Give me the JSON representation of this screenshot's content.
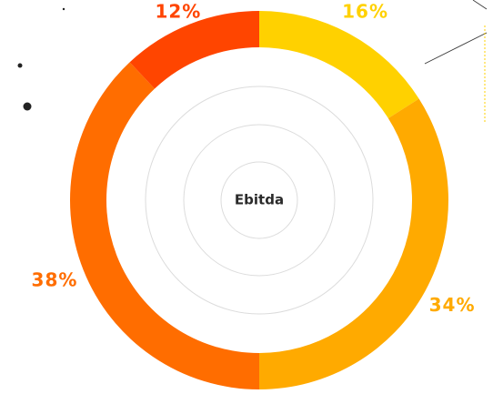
{
  "chart_data": {
    "type": "donut",
    "center_label": "Ebitda",
    "values": [
      16,
      34,
      38,
      12
    ],
    "value_labels": [
      "16%",
      "34%",
      "38%",
      "12%"
    ],
    "colors": [
      "#ffd100",
      "#ffaa00",
      "#ff6d00",
      "#ff4500"
    ]
  }
}
